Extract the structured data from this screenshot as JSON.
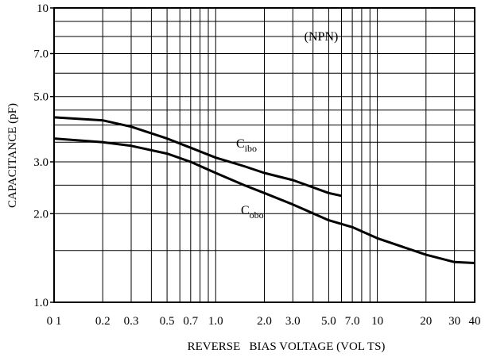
{
  "chart_data": {
    "type": "line",
    "xlabel": "REVERSE   BIAS VOLTAGE (VOL TS)",
    "ylabel": "CAPACITANCE (pF)",
    "x_scale": "log",
    "y_scale": "log",
    "xlim": [
      0.1,
      40
    ],
    "ylim": [
      1.0,
      10
    ],
    "grid": true,
    "x_ticks": [
      {
        "value": 0.1,
        "label": "0 1"
      },
      {
        "value": 0.2,
        "label": "0.2"
      },
      {
        "value": 0.3,
        "label": "0.3"
      },
      {
        "value": 0.5,
        "label": "0.5"
      },
      {
        "value": 0.7,
        "label": "0.7"
      },
      {
        "value": 1.0,
        "label": "1.0"
      },
      {
        "value": 2.0,
        "label": "2.0"
      },
      {
        "value": 3.0,
        "label": "3.0"
      },
      {
        "value": 5.0,
        "label": "5.0"
      },
      {
        "value": 7.0,
        "label": "7.0"
      },
      {
        "value": 10,
        "label": "10"
      },
      {
        "value": 20,
        "label": "20"
      },
      {
        "value": 30,
        "label": "30"
      },
      {
        "value": 40,
        "label": "40"
      }
    ],
    "y_ticks": [
      {
        "value": 1.0,
        "label": "1.0"
      },
      {
        "value": 2.0,
        "label": "2.0"
      },
      {
        "value": 3.0,
        "label": "3.0"
      },
      {
        "value": 5.0,
        "label": "5.0"
      },
      {
        "value": 7.0,
        "label": "7.0"
      },
      {
        "value": 10,
        "label": "10"
      }
    ],
    "annotation": "(NPN)",
    "series": [
      {
        "label_main": "C",
        "label_sub": "ibo",
        "x": [
          0.1,
          0.2,
          0.3,
          0.5,
          0.7,
          1.0,
          1.5,
          2.0,
          3.0,
          5.0,
          6.0
        ],
        "y": [
          4.25,
          4.15,
          3.95,
          3.6,
          3.35,
          3.1,
          2.9,
          2.75,
          2.6,
          2.35,
          2.3
        ]
      },
      {
        "label_main": "C",
        "label_sub": "obo",
        "x": [
          0.1,
          0.2,
          0.3,
          0.5,
          0.7,
          1.0,
          1.5,
          2.0,
          3.0,
          5.0,
          7.0,
          10,
          20,
          30,
          40
        ],
        "y": [
          3.6,
          3.5,
          3.4,
          3.2,
          3.0,
          2.75,
          2.5,
          2.35,
          2.15,
          1.9,
          1.8,
          1.65,
          1.45,
          1.37,
          1.36
        ]
      }
    ]
  }
}
